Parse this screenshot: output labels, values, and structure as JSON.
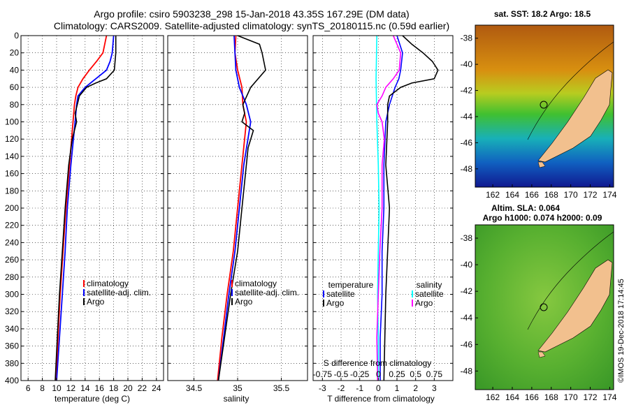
{
  "header": {
    "line1": "Argo profile: csiro 5903238_298 15-Jan-2018 43.35S 167.29E (DM data)",
    "line2": "Climatology: CARS2009. Satellite-adjusted climatology: synTS_20180115.nc (0.59d earlier)"
  },
  "colors": {
    "climatology": "#ff0000",
    "satellite": "#0000ff",
    "argo": "#000000",
    "s_satellite": "#00ffff",
    "s_argo": "#ff00ff"
  },
  "chart_data": [
    {
      "type": "line",
      "xlabel": "temperature (deg C)",
      "xlim": [
        5,
        25
      ],
      "xticks": [
        "6",
        "8",
        "10",
        "12",
        "14",
        "16",
        "18",
        "20",
        "22",
        "24"
      ],
      "ylim": [
        0,
        400
      ],
      "yticks": [
        "0",
        "20",
        "40",
        "60",
        "80",
        "100",
        "120",
        "140",
        "160",
        "180",
        "200",
        "220",
        "240",
        "260",
        "280",
        "300",
        "320",
        "340",
        "360",
        "380",
        "400"
      ],
      "legend": [
        "climatology",
        "satellite-adj. clim.",
        "Argo"
      ],
      "series": [
        {
          "name": "climatology",
          "depth": [
            0,
            20,
            30,
            40,
            50,
            60,
            70,
            80,
            100,
            150,
            200,
            250,
            300,
            350,
            400
          ],
          "values": [
            17.0,
            16.5,
            15.6,
            14.6,
            13.7,
            13.0,
            12.7,
            12.5,
            12.3,
            11.8,
            11.3,
            10.9,
            10.5,
            10.2,
            9.9
          ]
        },
        {
          "name": "satellite-adj. clim.",
          "depth": [
            0,
            20,
            30,
            40,
            50,
            60,
            70,
            80,
            100,
            150,
            200,
            250,
            300,
            350,
            400
          ],
          "values": [
            18.0,
            17.8,
            17.5,
            17.0,
            15.5,
            14.0,
            13.0,
            12.8,
            12.6,
            12.0,
            11.5,
            11.2,
            10.8,
            10.4,
            10.0
          ]
        },
        {
          "name": "Argo",
          "depth": [
            0,
            20,
            40,
            50,
            55,
            60,
            70,
            80,
            90,
            100,
            120,
            150,
            200,
            250,
            300,
            350,
            400
          ],
          "values": [
            18.3,
            18.3,
            18.1,
            17.0,
            15.5,
            14.2,
            13.2,
            12.9,
            12.6,
            12.8,
            12.2,
            11.7,
            11.2,
            10.8,
            10.4,
            10.1,
            9.8
          ]
        }
      ]
    },
    {
      "type": "line",
      "xlabel": "salinity",
      "xlim": [
        34.2,
        35.8
      ],
      "xticks": [
        "34.5",
        "35",
        "35.5"
      ],
      "ylim": [
        0,
        400
      ],
      "yticks": [
        "0",
        "20",
        "40",
        "60",
        "80",
        "100",
        "120",
        "140",
        "160",
        "180",
        "200",
        "220",
        "240",
        "260",
        "280",
        "300",
        "320",
        "340",
        "360",
        "380",
        "400"
      ],
      "legend": [
        "climatology",
        "satellite-adj. clim.",
        "Argo"
      ],
      "series": [
        {
          "name": "climatology",
          "depth": [
            0,
            20,
            40,
            60,
            80,
            100,
            150,
            200,
            250,
            300,
            350,
            400
          ],
          "values": [
            34.98,
            34.97,
            35.0,
            35.05,
            35.06,
            35.1,
            35.05,
            35.0,
            34.95,
            34.88,
            34.82,
            34.77
          ]
        },
        {
          "name": "satellite-adj. clim.",
          "depth": [
            0,
            20,
            40,
            60,
            80,
            100,
            150,
            200,
            250,
            300,
            350,
            400
          ],
          "values": [
            34.96,
            34.97,
            34.98,
            35.02,
            35.1,
            35.15,
            35.07,
            35.02,
            34.97,
            34.9,
            34.84,
            34.78
          ]
        },
        {
          "name": "Argo",
          "depth": [
            0,
            10,
            20,
            30,
            40,
            60,
            80,
            90,
            100,
            110,
            130,
            150,
            200,
            250,
            300,
            350,
            400
          ],
          "values": [
            35.0,
            35.25,
            35.28,
            35.3,
            35.32,
            35.15,
            35.06,
            35.08,
            35.05,
            35.18,
            35.12,
            35.1,
            35.05,
            35.0,
            34.92,
            34.85,
            34.78
          ]
        }
      ]
    },
    {
      "type": "line",
      "xlabel": "T difference from climatology",
      "s_xlabel": "S difference from climatology",
      "xlim": [
        -3.5,
        4
      ],
      "xticks": [
        "-3",
        "-2",
        "-1",
        "0",
        "1",
        "2",
        "3"
      ],
      "s_xticks": [
        "-0.75",
        "-0.5",
        "-0.25",
        "0",
        "0.25",
        "0.5",
        "0.75"
      ],
      "ylim": [
        0,
        400
      ],
      "yticks": [
        "0",
        "20",
        "40",
        "60",
        "80",
        "100",
        "120",
        "140",
        "160",
        "180",
        "200",
        "220",
        "240",
        "260",
        "280",
        "300",
        "320",
        "340",
        "360",
        "380",
        "400"
      ],
      "legend_temperature": {
        "title": "temperature",
        "items": [
          "satellite",
          "Argo"
        ]
      },
      "legend_salinity": {
        "title": "salinity",
        "items": [
          "satellite",
          "Argo"
        ]
      },
      "series": [
        {
          "name": "T satellite",
          "depth": [
            0,
            20,
            40,
            50,
            60,
            80,
            100,
            150,
            200,
            250,
            300,
            350,
            400
          ],
          "values": [
            1.0,
            1.3,
            1.2,
            1.1,
            0.9,
            0.6,
            0.4,
            0.3,
            0.3,
            0.2,
            0.2,
            0.1,
            0.1
          ]
        },
        {
          "name": "T Argo",
          "depth": [
            0,
            10,
            20,
            30,
            40,
            50,
            55,
            60,
            70,
            80,
            100,
            150,
            200,
            300,
            400
          ],
          "values": [
            1.3,
            1.8,
            2.4,
            2.9,
            3.2,
            3.0,
            1.8,
            1.2,
            0.6,
            0.5,
            0.5,
            0.4,
            0.6,
            0.4,
            0.3
          ]
        },
        {
          "name": "S satellite",
          "depth": [
            0,
            50,
            100,
            150,
            200,
            250,
            300,
            350,
            400
          ],
          "values": [
            -0.02,
            -0.03,
            -0.02,
            0.0,
            0.01,
            0.0,
            -0.01,
            0.0,
            0.0
          ]
        },
        {
          "name": "S Argo",
          "depth": [
            0,
            20,
            40,
            50,
            60,
            70,
            80,
            90,
            100,
            120,
            150,
            200,
            250,
            300,
            350,
            400
          ],
          "values": [
            0.2,
            0.3,
            0.28,
            0.2,
            0.1,
            0.05,
            -0.02,
            0.0,
            0.05,
            0.08,
            0.05,
            0.05,
            0.02,
            0.0,
            -0.02,
            -0.01
          ]
        }
      ]
    }
  ],
  "maps": [
    {
      "title": "sat. SST: 18.2 Argo: 18.5",
      "lat_ticks": [
        "-38",
        "-40",
        "-42",
        "-44",
        "-46",
        "-48"
      ],
      "lon_ticks": [
        "162",
        "164",
        "166",
        "168",
        "170",
        "172",
        "174"
      ]
    },
    {
      "title1": "Altim. SLA: 0.064",
      "title2": "Argo h1000: 0.074 h2000: 0.09",
      "lat_ticks": [
        "-38",
        "-40",
        "-42",
        "-44",
        "-46",
        "-48"
      ],
      "lon_ticks": [
        "162",
        "164",
        "166",
        "168",
        "170",
        "172",
        "174"
      ]
    }
  ],
  "credit": "©IMOS 19-Dec-2018 17:14:45"
}
